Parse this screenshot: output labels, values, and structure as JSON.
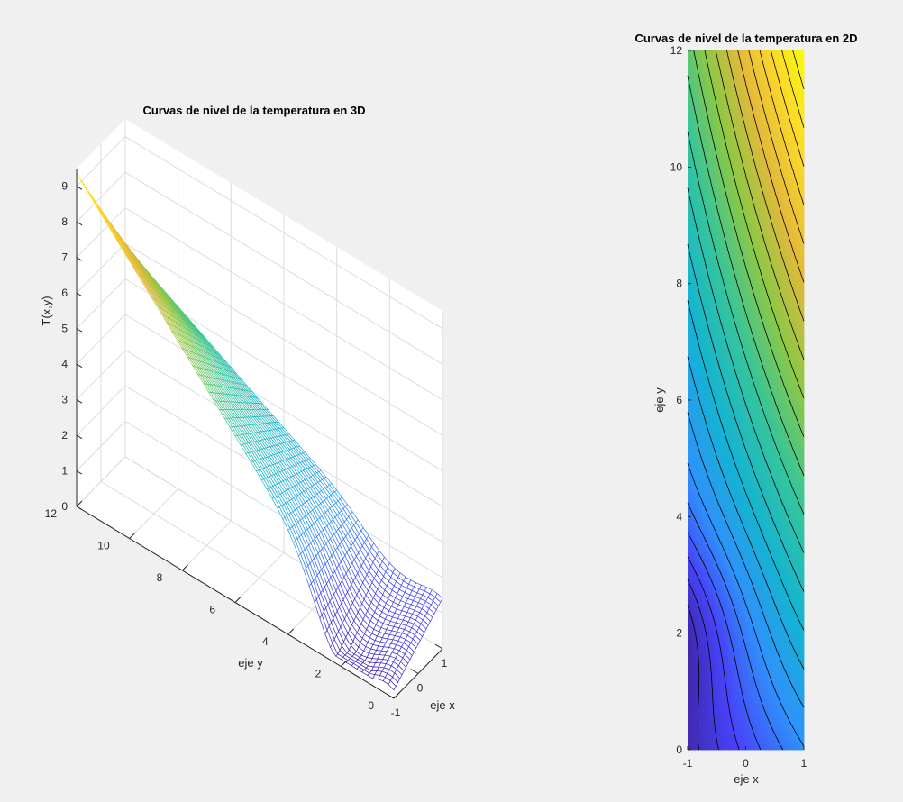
{
  "chart_data": [
    {
      "type": "surface",
      "title": "Curvas de nivel de la temperatura en 3D",
      "xlabel": "eje x",
      "ylabel": "eje y",
      "zlabel": "T(x,y)",
      "xlim": [
        -1,
        1
      ],
      "ylim": [
        0,
        12
      ],
      "zlim": [
        0,
        9.5
      ],
      "xticks": [
        -1,
        0,
        1
      ],
      "yticks": [
        0,
        2,
        4,
        6,
        8,
        10,
        12
      ],
      "zticks": [
        0,
        1,
        2,
        3,
        4,
        5,
        6,
        7,
        8,
        9
      ],
      "grid": true,
      "colormap": "parula",
      "note_values": {
        "max_T_at": [
          -1,
          12
        ],
        "max_T": 9.7,
        "min_T_at": [
          -1,
          2
        ],
        "min_T": 0.3
      }
    },
    {
      "type": "contourf",
      "title": "Curvas de nivel de la temperatura en 2D",
      "xlabel": "eje x",
      "ylabel": "eje y",
      "xlim": [
        -1,
        1
      ],
      "ylim": [
        0,
        12
      ],
      "xticks": [
        -1,
        0,
        1
      ],
      "yticks": [
        0,
        2,
        4,
        6,
        8,
        10,
        12
      ],
      "colormap": "parula",
      "contour_line_color": "#000000"
    }
  ],
  "colors": {
    "figure_bg": "#f0f0f0",
    "axes_bg": "#ffffff",
    "grid": "#dcdcdc",
    "axis": "#262626",
    "parula": [
      "#3e26a8",
      "#4743f8",
      "#2f91fb",
      "#14b4d2",
      "#35c59b",
      "#8bc846",
      "#e2b93a",
      "#fbd72b",
      "#f9fb0e"
    ]
  }
}
